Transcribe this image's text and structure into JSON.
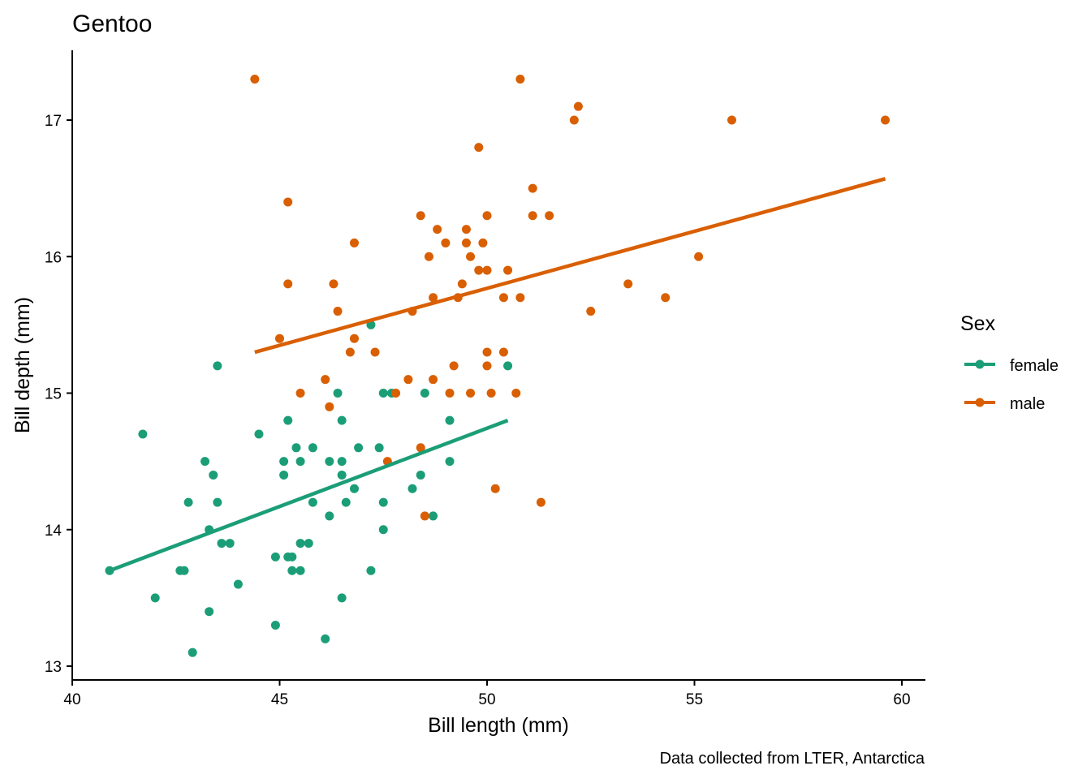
{
  "chart_data": {
    "type": "scatter",
    "title": "Gentoo",
    "xlabel": "Bill length (mm)",
    "ylabel": "Bill depth (mm)",
    "caption": "Data collected from LTER, Antarctica",
    "xlim": [
      40,
      60.5
    ],
    "ylim": [
      12.95,
      17.5
    ],
    "xticks": [
      40,
      45,
      50,
      55,
      60
    ],
    "yticks": [
      13,
      14,
      15,
      16,
      17
    ],
    "grid": false,
    "legend": {
      "title": "Sex",
      "placement": "right"
    },
    "series": [
      {
        "name": "female",
        "color": "#1B9E77",
        "trend": [
          [
            40.9,
            13.7
          ],
          [
            50.5,
            14.8
          ]
        ],
        "points": [
          [
            40.9,
            13.7
          ],
          [
            41.7,
            14.7
          ],
          [
            42.0,
            13.5
          ],
          [
            42.6,
            13.7
          ],
          [
            42.7,
            13.7
          ],
          [
            42.8,
            14.2
          ],
          [
            42.9,
            13.1
          ],
          [
            43.2,
            14.5
          ],
          [
            43.3,
            14.0
          ],
          [
            43.3,
            13.4
          ],
          [
            43.4,
            14.4
          ],
          [
            43.5,
            14.2
          ],
          [
            43.5,
            15.2
          ],
          [
            43.6,
            13.9
          ],
          [
            43.8,
            13.9
          ],
          [
            44.0,
            13.6
          ],
          [
            44.5,
            14.7
          ],
          [
            44.9,
            13.8
          ],
          [
            44.9,
            13.3
          ],
          [
            45.1,
            14.5
          ],
          [
            45.1,
            14.4
          ],
          [
            45.2,
            14.8
          ],
          [
            45.2,
            13.8
          ],
          [
            45.3,
            13.8
          ],
          [
            45.3,
            13.7
          ],
          [
            45.4,
            14.6
          ],
          [
            45.5,
            14.5
          ],
          [
            45.5,
            13.9
          ],
          [
            45.5,
            13.7
          ],
          [
            45.7,
            13.9
          ],
          [
            45.8,
            14.6
          ],
          [
            45.8,
            14.2
          ],
          [
            46.1,
            13.2
          ],
          [
            46.2,
            14.5
          ],
          [
            46.2,
            14.1
          ],
          [
            46.4,
            15.0
          ],
          [
            46.5,
            14.8
          ],
          [
            46.5,
            14.5
          ],
          [
            46.5,
            14.4
          ],
          [
            46.5,
            13.5
          ],
          [
            46.6,
            14.2
          ],
          [
            46.8,
            14.3
          ],
          [
            46.9,
            14.6
          ],
          [
            47.2,
            15.5
          ],
          [
            47.2,
            13.7
          ],
          [
            47.4,
            14.6
          ],
          [
            47.5,
            15.0
          ],
          [
            47.5,
            14.2
          ],
          [
            47.5,
            14.0
          ],
          [
            47.7,
            15.0
          ],
          [
            48.2,
            14.3
          ],
          [
            48.4,
            14.4
          ],
          [
            48.5,
            15.0
          ],
          [
            48.7,
            14.1
          ],
          [
            49.1,
            14.8
          ],
          [
            49.1,
            14.5
          ],
          [
            50.5,
            15.2
          ]
        ]
      },
      {
        "name": "male",
        "color": "#D95F02",
        "trend": [
          [
            44.4,
            15.3
          ],
          [
            59.6,
            16.57
          ]
        ],
        "points": [
          [
            44.4,
            17.3
          ],
          [
            45.0,
            15.4
          ],
          [
            45.2,
            16.4
          ],
          [
            45.2,
            15.8
          ],
          [
            45.5,
            15.0
          ],
          [
            46.1,
            15.1
          ],
          [
            46.2,
            14.9
          ],
          [
            46.3,
            15.8
          ],
          [
            46.4,
            15.6
          ],
          [
            46.7,
            15.3
          ],
          [
            46.8,
            15.4
          ],
          [
            46.8,
            16.1
          ],
          [
            47.3,
            15.3
          ],
          [
            47.6,
            14.5
          ],
          [
            47.8,
            15.0
          ],
          [
            48.1,
            15.1
          ],
          [
            48.2,
            15.6
          ],
          [
            48.4,
            16.3
          ],
          [
            48.4,
            14.6
          ],
          [
            48.5,
            14.1
          ],
          [
            48.6,
            16.0
          ],
          [
            48.7,
            15.7
          ],
          [
            48.7,
            15.1
          ],
          [
            48.8,
            16.2
          ],
          [
            49.0,
            16.1
          ],
          [
            49.1,
            15.0
          ],
          [
            49.2,
            15.2
          ],
          [
            49.3,
            15.7
          ],
          [
            49.4,
            15.8
          ],
          [
            49.5,
            16.2
          ],
          [
            49.5,
            16.1
          ],
          [
            49.6,
            16.0
          ],
          [
            49.6,
            15.0
          ],
          [
            49.8,
            15.9
          ],
          [
            49.8,
            16.8
          ],
          [
            49.9,
            16.1
          ],
          [
            50.0,
            16.3
          ],
          [
            50.0,
            15.9
          ],
          [
            50.0,
            15.3
          ],
          [
            50.0,
            15.2
          ],
          [
            50.1,
            15.0
          ],
          [
            50.2,
            14.3
          ],
          [
            50.4,
            15.3
          ],
          [
            50.4,
            15.7
          ],
          [
            50.5,
            15.9
          ],
          [
            50.7,
            15.0
          ],
          [
            50.8,
            15.7
          ],
          [
            50.8,
            17.3
          ],
          [
            51.1,
            16.5
          ],
          [
            51.1,
            16.3
          ],
          [
            51.3,
            14.2
          ],
          [
            51.5,
            16.3
          ],
          [
            52.1,
            17.0
          ],
          [
            52.2,
            17.1
          ],
          [
            52.5,
            15.6
          ],
          [
            53.4,
            15.8
          ],
          [
            54.3,
            15.7
          ],
          [
            55.1,
            16.0
          ],
          [
            55.9,
            17.0
          ],
          [
            59.6,
            17.0
          ]
        ]
      }
    ]
  }
}
